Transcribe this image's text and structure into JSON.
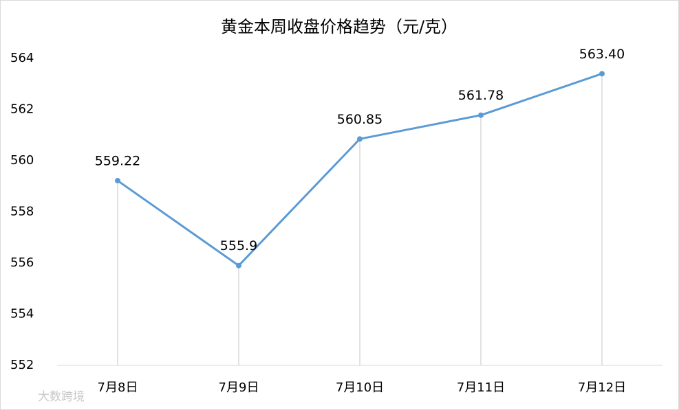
{
  "chart_data": {
    "type": "line",
    "title": "黄金本周收盘价格趋势（元/克）",
    "categories": [
      "7月8日",
      "7月9日",
      "7月10日",
      "7月11日",
      "7月12日"
    ],
    "values": [
      559.22,
      555.9,
      560.85,
      561.78,
      563.4
    ],
    "value_labels": [
      "559.22",
      "555.9",
      "560.85",
      "561.78",
      "563.40"
    ],
    "color": "#5b9bd5",
    "ylim": [
      552,
      564
    ],
    "yticks": [
      552,
      554,
      556,
      558,
      560,
      562,
      564
    ],
    "drop_lines": true,
    "watermark": "大数跨境"
  }
}
